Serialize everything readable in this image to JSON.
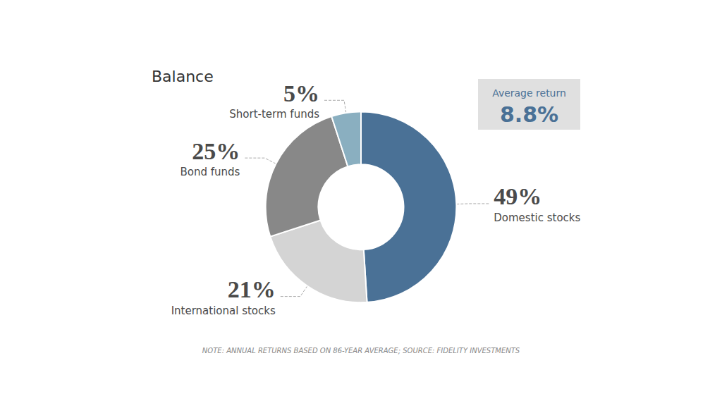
{
  "chart_data": {
    "type": "pie",
    "title": "Balance",
    "categories": [
      "Domestic stocks",
      "International stocks",
      "Bond funds",
      "Short-term funds"
    ],
    "values": [
      49,
      21,
      25,
      5
    ],
    "value_labels": [
      "49%",
      "21%",
      "25%",
      "5%"
    ],
    "data_labels": true,
    "colors": [
      "#4a7196",
      "#d4d4d4",
      "#888888",
      "#8aafc0"
    ],
    "annotations": [
      "Average return",
      "8.8%",
      "NOTE: ANNUAL RETURNS BASED ON 86-YEAR AVERAGE; SOURCE: FIDELITY INVESTMENTS"
    ]
  }
}
